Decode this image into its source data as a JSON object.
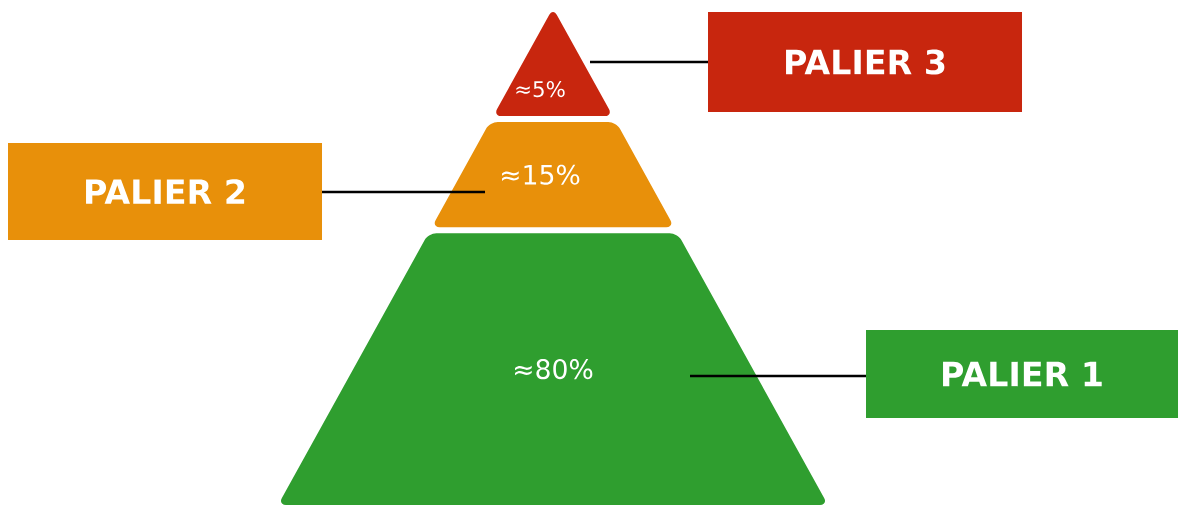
{
  "chart_data": {
    "type": "other",
    "categories": [
      "PALIER 3",
      "PALIER 2",
      "PALIER 1"
    ],
    "values": [
      5,
      15,
      80
    ],
    "value_labels": [
      "≈5%",
      "≈15%",
      "≈80%"
    ],
    "colors": [
      "#c8260e",
      "#e8900a",
      "#2f9e2f"
    ]
  }
}
